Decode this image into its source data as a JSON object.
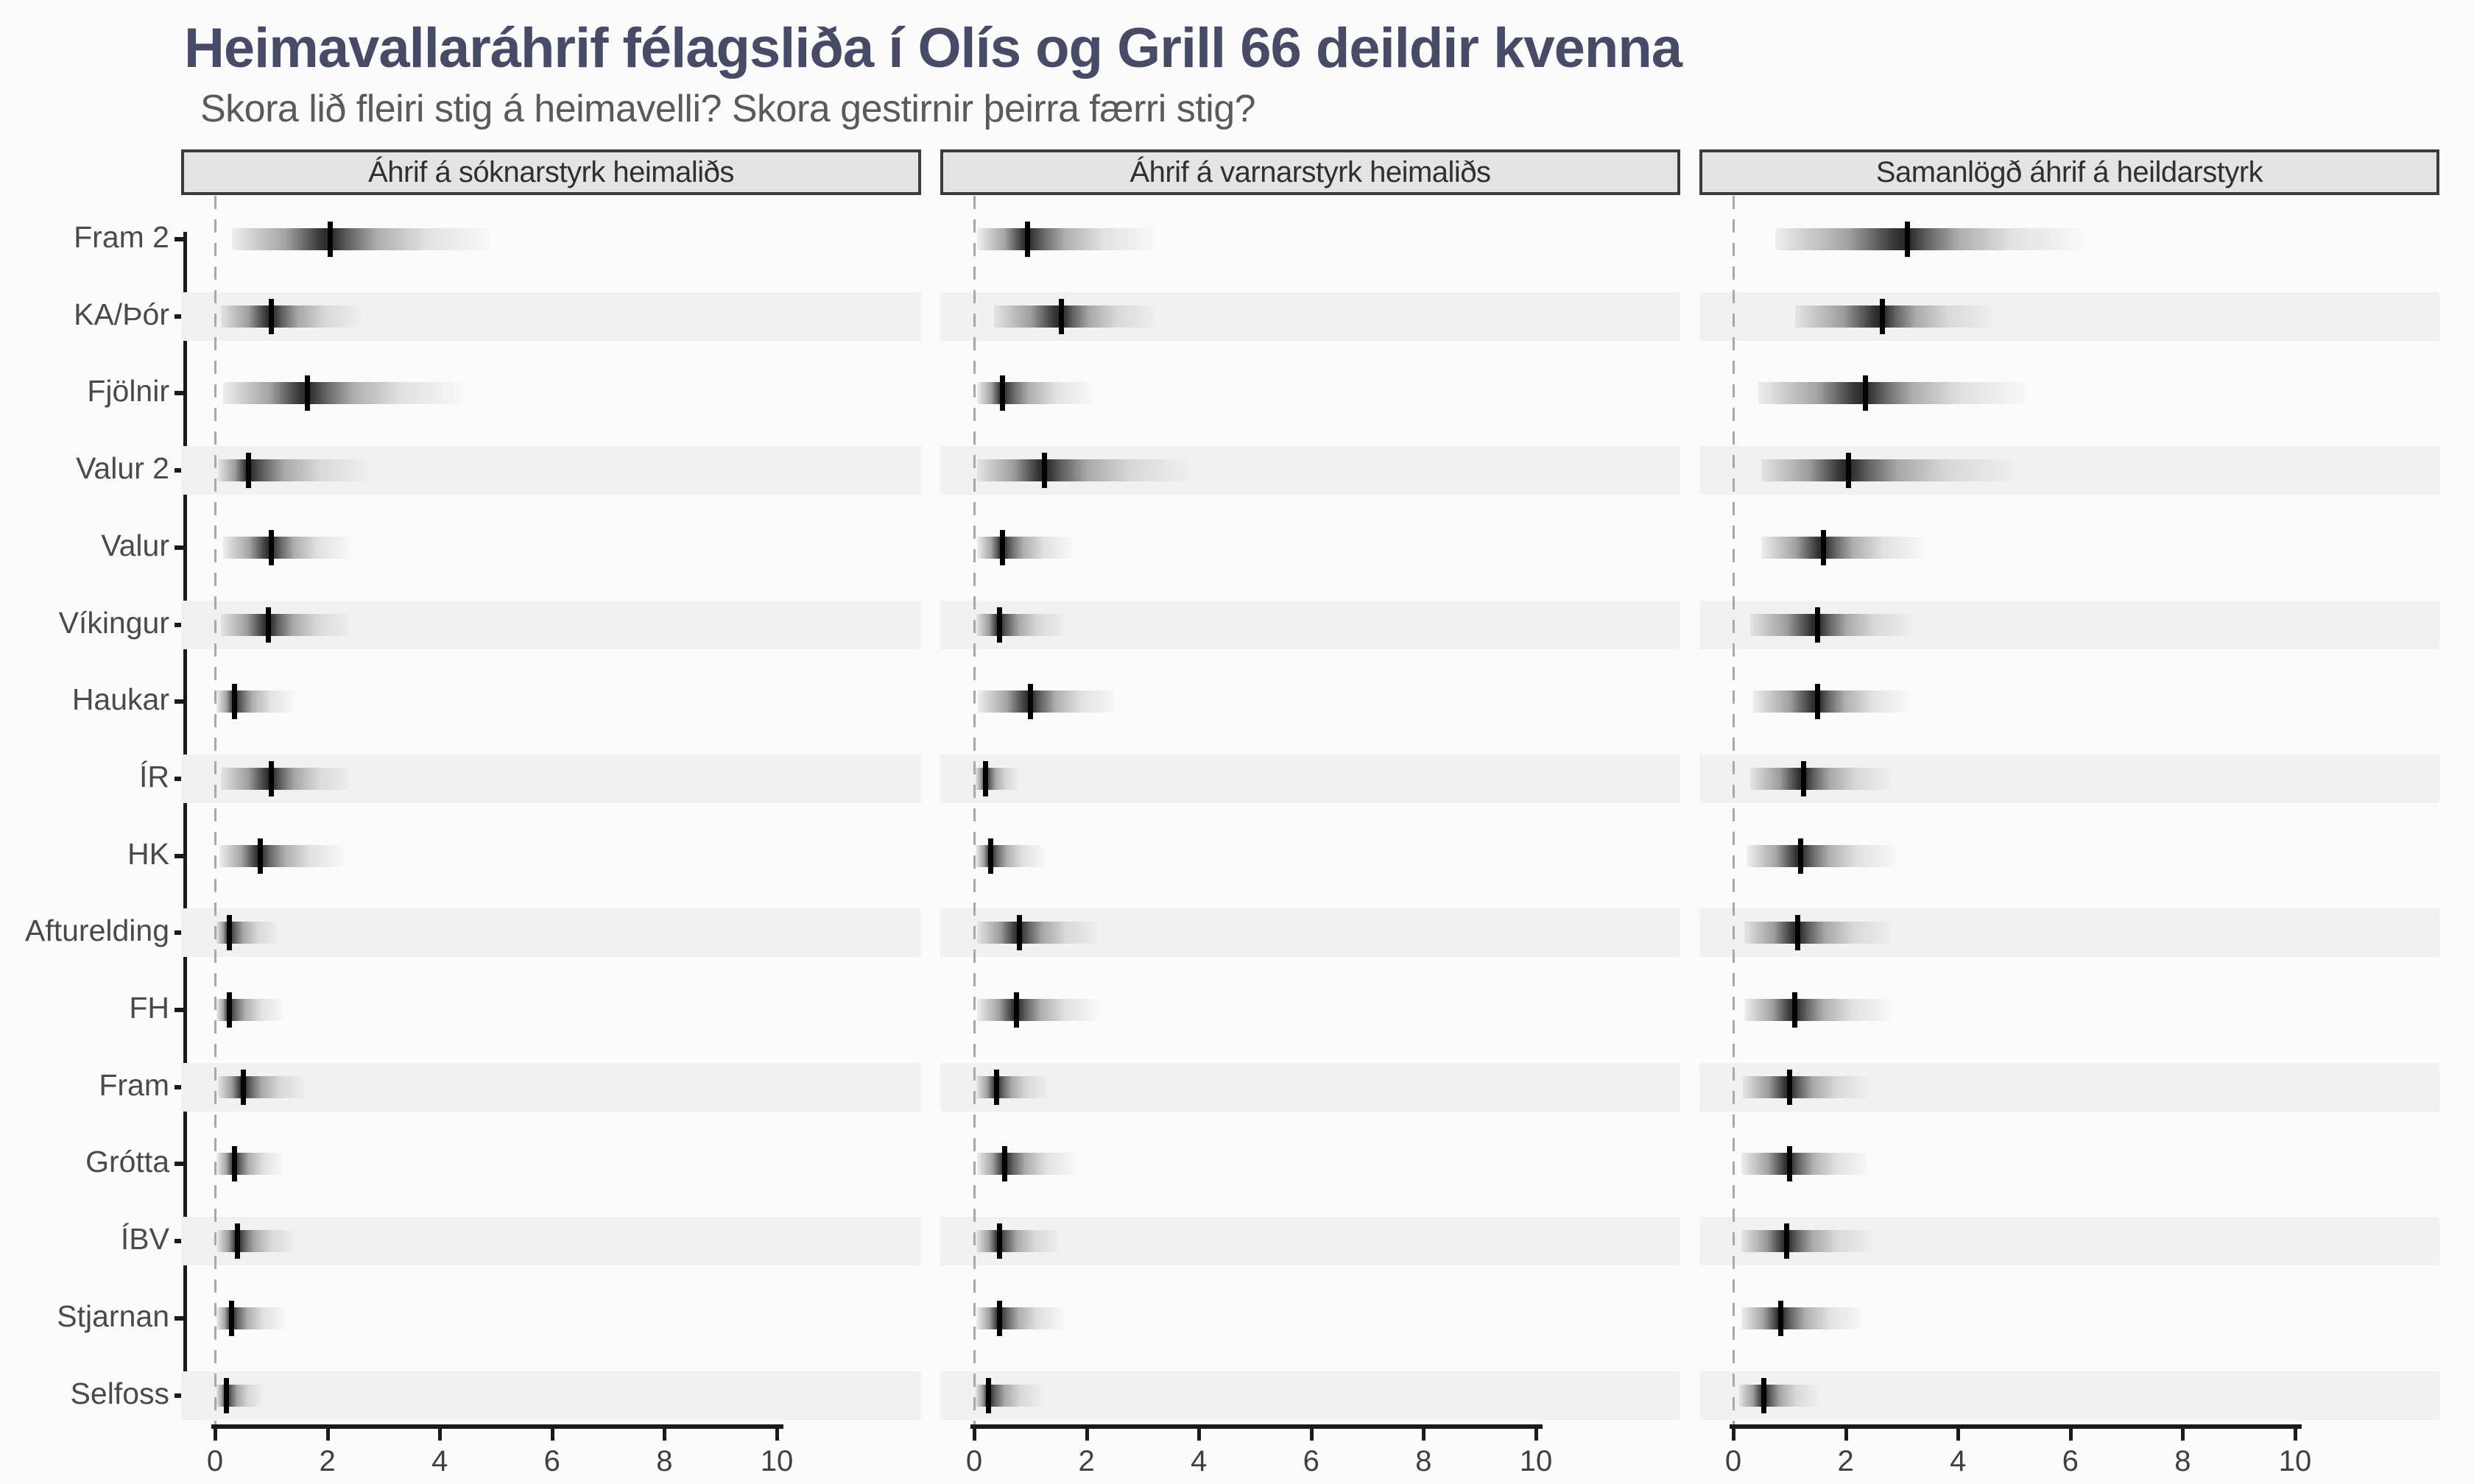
{
  "title": "Heimavallaráhrif félagsliða í Olís og Grill 66 deildir kvenna",
  "subtitle": "Skora lið fleiri stig á heimavelli? Skora gestirnir þeirra færri stig?",
  "colors": {
    "title": "#474b66",
    "subtitle": "#5a5a5a",
    "background": "#fbfbfb",
    "stripe": "#f1f1f1",
    "header_bg": "#e4e4e4",
    "header_border": "#3b3b3b",
    "header_text": "#303030",
    "axis": "#1a1a1a",
    "dashed_line": "#a8a8a8",
    "label_text": "#4a4a4a",
    "interval_ink": "#000000"
  },
  "chart_data": {
    "type": "gradient_interval",
    "orientation": "horizontal",
    "x_range": [
      0,
      10
    ],
    "x_ticks": [
      0,
      2,
      4,
      6,
      8,
      10
    ],
    "reference_line_x": 0,
    "grid": "alternating-row-stripes",
    "teams": [
      "Fram 2",
      "KA/Þór",
      "Fjölnir",
      "Valur 2",
      "Valur",
      "Víkingur",
      "Haukar",
      "ÍR",
      "HK",
      "Afturelding",
      "FH",
      "Fram",
      "Grótta",
      "ÍBV",
      "Stjarnan",
      "Selfoss"
    ],
    "panels": [
      {
        "title": "Áhrif á sóknarstyrk heimaliðs",
        "estimates": [
          {
            "team": "Fram 2",
            "median": 2.05,
            "lo": 0.3,
            "hi": 4.9
          },
          {
            "team": "KA/Þór",
            "median": 1.0,
            "lo": 0.1,
            "hi": 2.6
          },
          {
            "team": "Fjölnir",
            "median": 1.65,
            "lo": 0.15,
            "hi": 4.4
          },
          {
            "team": "Valur 2",
            "median": 0.6,
            "lo": 0.05,
            "hi": 2.7
          },
          {
            "team": "Valur",
            "median": 1.0,
            "lo": 0.15,
            "hi": 2.4
          },
          {
            "team": "Víkingur",
            "median": 0.95,
            "lo": 0.1,
            "hi": 2.4
          },
          {
            "team": "Haukar",
            "median": 0.35,
            "lo": 0.03,
            "hi": 1.4
          },
          {
            "team": "ÍR",
            "median": 1.0,
            "lo": 0.1,
            "hi": 2.4
          },
          {
            "team": "HK",
            "median": 0.8,
            "lo": 0.08,
            "hi": 2.3
          },
          {
            "team": "Afturelding",
            "median": 0.25,
            "lo": 0.03,
            "hi": 1.1
          },
          {
            "team": "FH",
            "median": 0.25,
            "lo": 0.03,
            "hi": 1.2
          },
          {
            "team": "Fram",
            "median": 0.5,
            "lo": 0.05,
            "hi": 1.6
          },
          {
            "team": "Grótta",
            "median": 0.35,
            "lo": 0.03,
            "hi": 1.2
          },
          {
            "team": "ÍBV",
            "median": 0.4,
            "lo": 0.04,
            "hi": 1.4
          },
          {
            "team": "Stjarnan",
            "median": 0.3,
            "lo": 0.03,
            "hi": 1.25
          },
          {
            "team": "Selfoss",
            "median": 0.2,
            "lo": 0.02,
            "hi": 0.85
          }
        ]
      },
      {
        "title": "Áhrif á varnarstyrk heimaliðs",
        "estimates": [
          {
            "team": "Fram 2",
            "median": 0.95,
            "lo": 0.05,
            "hi": 3.2
          },
          {
            "team": "KA/Þór",
            "median": 1.55,
            "lo": 0.35,
            "hi": 3.2
          },
          {
            "team": "Fjölnir",
            "median": 0.5,
            "lo": 0.05,
            "hi": 2.1
          },
          {
            "team": "Valur 2",
            "median": 1.25,
            "lo": 0.05,
            "hi": 3.8
          },
          {
            "team": "Valur",
            "median": 0.5,
            "lo": 0.05,
            "hi": 1.75
          },
          {
            "team": "Víkingur",
            "median": 0.45,
            "lo": 0.04,
            "hi": 1.6
          },
          {
            "team": "Haukar",
            "median": 1.0,
            "lo": 0.06,
            "hi": 2.5
          },
          {
            "team": "ÍR",
            "median": 0.2,
            "lo": 0.02,
            "hi": 0.8
          },
          {
            "team": "HK",
            "median": 0.3,
            "lo": 0.03,
            "hi": 1.25
          },
          {
            "team": "Afturelding",
            "median": 0.8,
            "lo": 0.05,
            "hi": 2.2
          },
          {
            "team": "FH",
            "median": 0.75,
            "lo": 0.05,
            "hi": 2.2
          },
          {
            "team": "Fram",
            "median": 0.4,
            "lo": 0.04,
            "hi": 1.3
          },
          {
            "team": "Grótta",
            "median": 0.55,
            "lo": 0.05,
            "hi": 1.8
          },
          {
            "team": "ÍBV",
            "median": 0.45,
            "lo": 0.04,
            "hi": 1.5
          },
          {
            "team": "Stjarnan",
            "median": 0.45,
            "lo": 0.04,
            "hi": 1.6
          },
          {
            "team": "Selfoss",
            "median": 0.25,
            "lo": 0.02,
            "hi": 1.2
          }
        ]
      },
      {
        "title": "Samanlögð áhrif á heildarstyrk",
        "estimates": [
          {
            "team": "Fram 2",
            "median": 3.1,
            "lo": 0.75,
            "hi": 6.2
          },
          {
            "team": "KA/Þór",
            "median": 2.65,
            "lo": 1.1,
            "hi": 4.6
          },
          {
            "team": "Fjölnir",
            "median": 2.35,
            "lo": 0.45,
            "hi": 5.2
          },
          {
            "team": "Valur 2",
            "median": 2.05,
            "lo": 0.5,
            "hi": 5.0
          },
          {
            "team": "Valur",
            "median": 1.6,
            "lo": 0.5,
            "hi": 3.4
          },
          {
            "team": "Víkingur",
            "median": 1.5,
            "lo": 0.3,
            "hi": 3.2
          },
          {
            "team": "Haukar",
            "median": 1.5,
            "lo": 0.35,
            "hi": 3.1
          },
          {
            "team": "ÍR",
            "median": 1.25,
            "lo": 0.3,
            "hi": 2.8
          },
          {
            "team": "HK",
            "median": 1.2,
            "lo": 0.25,
            "hi": 2.9
          },
          {
            "team": "Afturelding",
            "median": 1.15,
            "lo": 0.2,
            "hi": 2.8
          },
          {
            "team": "FH",
            "median": 1.1,
            "lo": 0.2,
            "hi": 2.8
          },
          {
            "team": "Fram",
            "median": 1.0,
            "lo": 0.17,
            "hi": 2.4
          },
          {
            "team": "Grótta",
            "median": 1.0,
            "lo": 0.15,
            "hi": 2.4
          },
          {
            "team": "ÍBV",
            "median": 0.95,
            "lo": 0.14,
            "hi": 2.45
          },
          {
            "team": "Stjarnan",
            "median": 0.85,
            "lo": 0.14,
            "hi": 2.3
          },
          {
            "team": "Selfoss",
            "median": 0.55,
            "lo": 0.1,
            "hi": 1.5
          }
        ]
      }
    ]
  }
}
